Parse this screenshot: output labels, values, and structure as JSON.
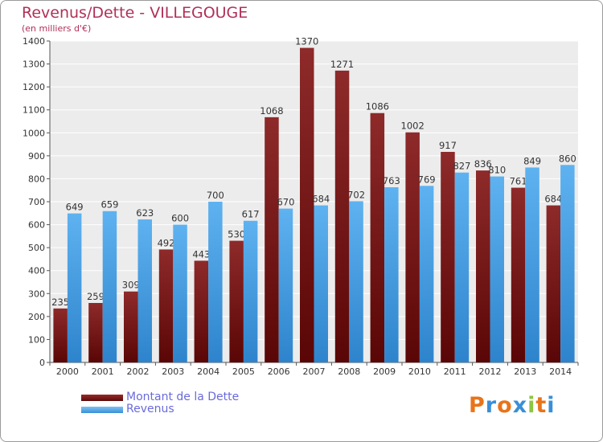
{
  "chart_data": {
    "type": "bar",
    "title": "Revenus/Dette - VILLEGOUGE",
    "subtitle": "(en milliers d'€)",
    "categories": [
      "2000",
      "2001",
      "2002",
      "2003",
      "2004",
      "2005",
      "2006",
      "2007",
      "2008",
      "2009",
      "2010",
      "2011",
      "2012",
      "2013",
      "2014"
    ],
    "series": [
      {
        "name": "Montant de la Dette",
        "color": "#7a1a1a",
        "values": [
          235,
          259,
          309,
          492,
          443,
          530,
          1068,
          1370,
          1271,
          1086,
          1002,
          917,
          836,
          761,
          684
        ]
      },
      {
        "name": "Revenus",
        "color": "#4aa3e8",
        "values": [
          649,
          659,
          623,
          600,
          700,
          617,
          670,
          684,
          702,
          763,
          769,
          827,
          810,
          849,
          860
        ]
      }
    ],
    "ylim": [
      0,
      1400
    ],
    "ytick_step": 100,
    "grid": true,
    "legend_position": "bottom-left"
  },
  "legend": {
    "items": [
      "Montant de la Dette",
      "Revenus"
    ]
  },
  "logo": {
    "letters": [
      "P",
      "r",
      "o",
      "x",
      "i",
      "t",
      "i"
    ],
    "colors": [
      "#e8741a",
      "#3a8fd6",
      "#e8741a",
      "#3a8fd6",
      "#8cc63f",
      "#e8741a",
      "#3a8fd6"
    ]
  }
}
